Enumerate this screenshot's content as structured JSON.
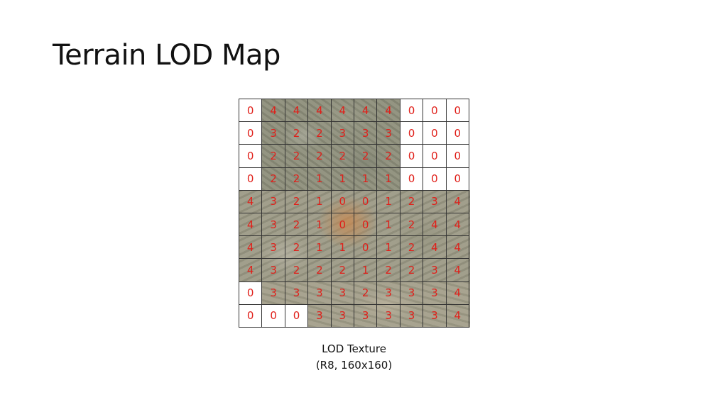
{
  "slide": {
    "title": "Terrain LOD Map",
    "caption_line1": "LOD Texture",
    "caption_line2": "(R8, 160x160)"
  },
  "lod_grid": {
    "rows": [
      [
        "0",
        "4",
        "4",
        "4",
        "4",
        "4",
        "4",
        "0",
        "0",
        "0"
      ],
      [
        "0",
        "3",
        "2",
        "2",
        "3",
        "3",
        "3",
        "0",
        "0",
        "0"
      ],
      [
        "0",
        "2",
        "2",
        "2",
        "2",
        "2",
        "2",
        "0",
        "0",
        "0"
      ],
      [
        "0",
        "2",
        "2",
        "1",
        "1",
        "1",
        "1",
        "0",
        "0",
        "0"
      ],
      [
        "4",
        "3",
        "2",
        "1",
        "0",
        "0",
        "1",
        "2",
        "3",
        "4"
      ],
      [
        "4",
        "3",
        "2",
        "1",
        "0",
        "0",
        "1",
        "2",
        "4",
        "4"
      ],
      [
        "4",
        "3",
        "2",
        "1",
        "1",
        "0",
        "1",
        "2",
        "4",
        "4"
      ],
      [
        "4",
        "3",
        "2",
        "2",
        "2",
        "1",
        "2",
        "2",
        "3",
        "4"
      ],
      [
        "0",
        "3",
        "3",
        "3",
        "3",
        "2",
        "3",
        "3",
        "3",
        "4"
      ],
      [
        "0",
        "0",
        "0",
        "3",
        "3",
        "3",
        "3",
        "3",
        "3",
        "4"
      ]
    ],
    "blank_cells": [
      [
        0,
        0
      ],
      [
        0,
        7
      ],
      [
        0,
        8
      ],
      [
        0,
        9
      ],
      [
        1,
        0
      ],
      [
        1,
        7
      ],
      [
        1,
        8
      ],
      [
        1,
        9
      ],
      [
        2,
        0
      ],
      [
        2,
        7
      ],
      [
        2,
        8
      ],
      [
        2,
        9
      ],
      [
        3,
        0
      ],
      [
        3,
        7
      ],
      [
        3,
        8
      ],
      [
        3,
        9
      ],
      [
        8,
        0
      ],
      [
        9,
        0
      ],
      [
        9,
        1
      ],
      [
        9,
        2
      ]
    ],
    "value_color": "#e0201a"
  }
}
